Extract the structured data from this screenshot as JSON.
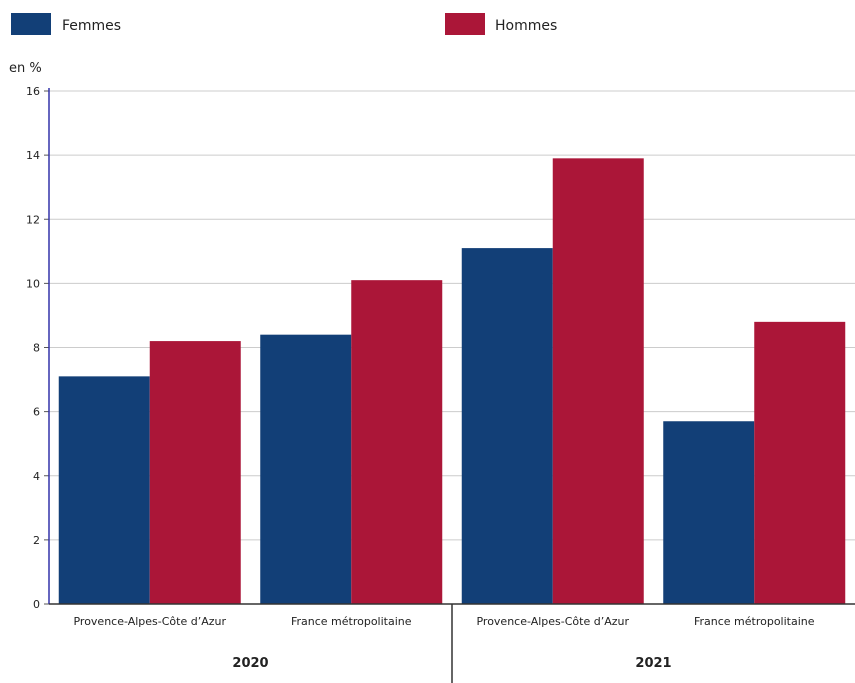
{
  "chart_data": {
    "type": "bar",
    "title": "",
    "xlabel": "",
    "ylabel": "en %",
    "ylim": [
      0,
      16
    ],
    "yticks": [
      0,
      2,
      4,
      6,
      8,
      10,
      12,
      14,
      16
    ],
    "grid": true,
    "legend_position": "top",
    "groups": [
      "2020",
      "2021"
    ],
    "categories": [
      "Provence-Alpes-Côte d’Azur",
      "France métropolitaine",
      "Provence-Alpes-Côte d’Azur",
      "France métropolitaine"
    ],
    "category_groups": [
      "2020",
      "2020",
      "2021",
      "2021"
    ],
    "series": [
      {
        "name": "Femmes",
        "color": "#123f77",
        "values": [
          7.1,
          8.4,
          11.1,
          5.7
        ]
      },
      {
        "name": "Hommes",
        "color": "#ab1638",
        "values": [
          8.2,
          10.1,
          13.9,
          8.8
        ]
      }
    ]
  }
}
